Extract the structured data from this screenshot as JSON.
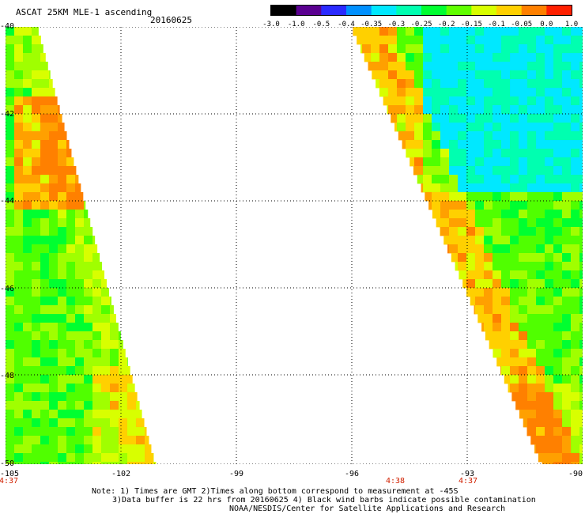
{
  "header": {
    "title": "ASCAT 25KM MLE-1 ascending",
    "date": "20160625"
  },
  "colorbar": {
    "labels": [
      "-3.0",
      "-1.0",
      "-0.5",
      "-0.4",
      "-0.35",
      "-0.3",
      "-0.25",
      "-0.2",
      "-0.15",
      "-0.1",
      "-0.05",
      "0.0",
      "1.0"
    ],
    "colors": [
      "#000000",
      "#5a0090",
      "#2a2aff",
      "#0090ff",
      "#00e8ff",
      "#00ffb0",
      "#00ff30",
      "#60ff00",
      "#d8ff00",
      "#ffd000",
      "#ff8000",
      "#ff2000"
    ]
  },
  "map": {
    "lat_ticks": [
      "-40",
      "-42",
      "-44",
      "-46",
      "-48",
      "-50"
    ],
    "lon_ticks": [
      "-105",
      "-102",
      "-99",
      "-96",
      "-93",
      "-90"
    ],
    "time_labels": [
      "4:37",
      "4:38",
      "4:37"
    ],
    "lon_range": [
      -105,
      -90
    ],
    "lat_range": [
      -50,
      -40
    ]
  },
  "notes": {
    "line1": "Note: 1) Times are GMT 2)Times along bottom correspond to measurement at -45S",
    "line2": "3)Data buffer is 22 hrs from 20160625 4) Black wind barbs indicate possible contamination",
    "line3": "NOAA/NESDIS/Center for Satellite Applications and Research"
  }
}
